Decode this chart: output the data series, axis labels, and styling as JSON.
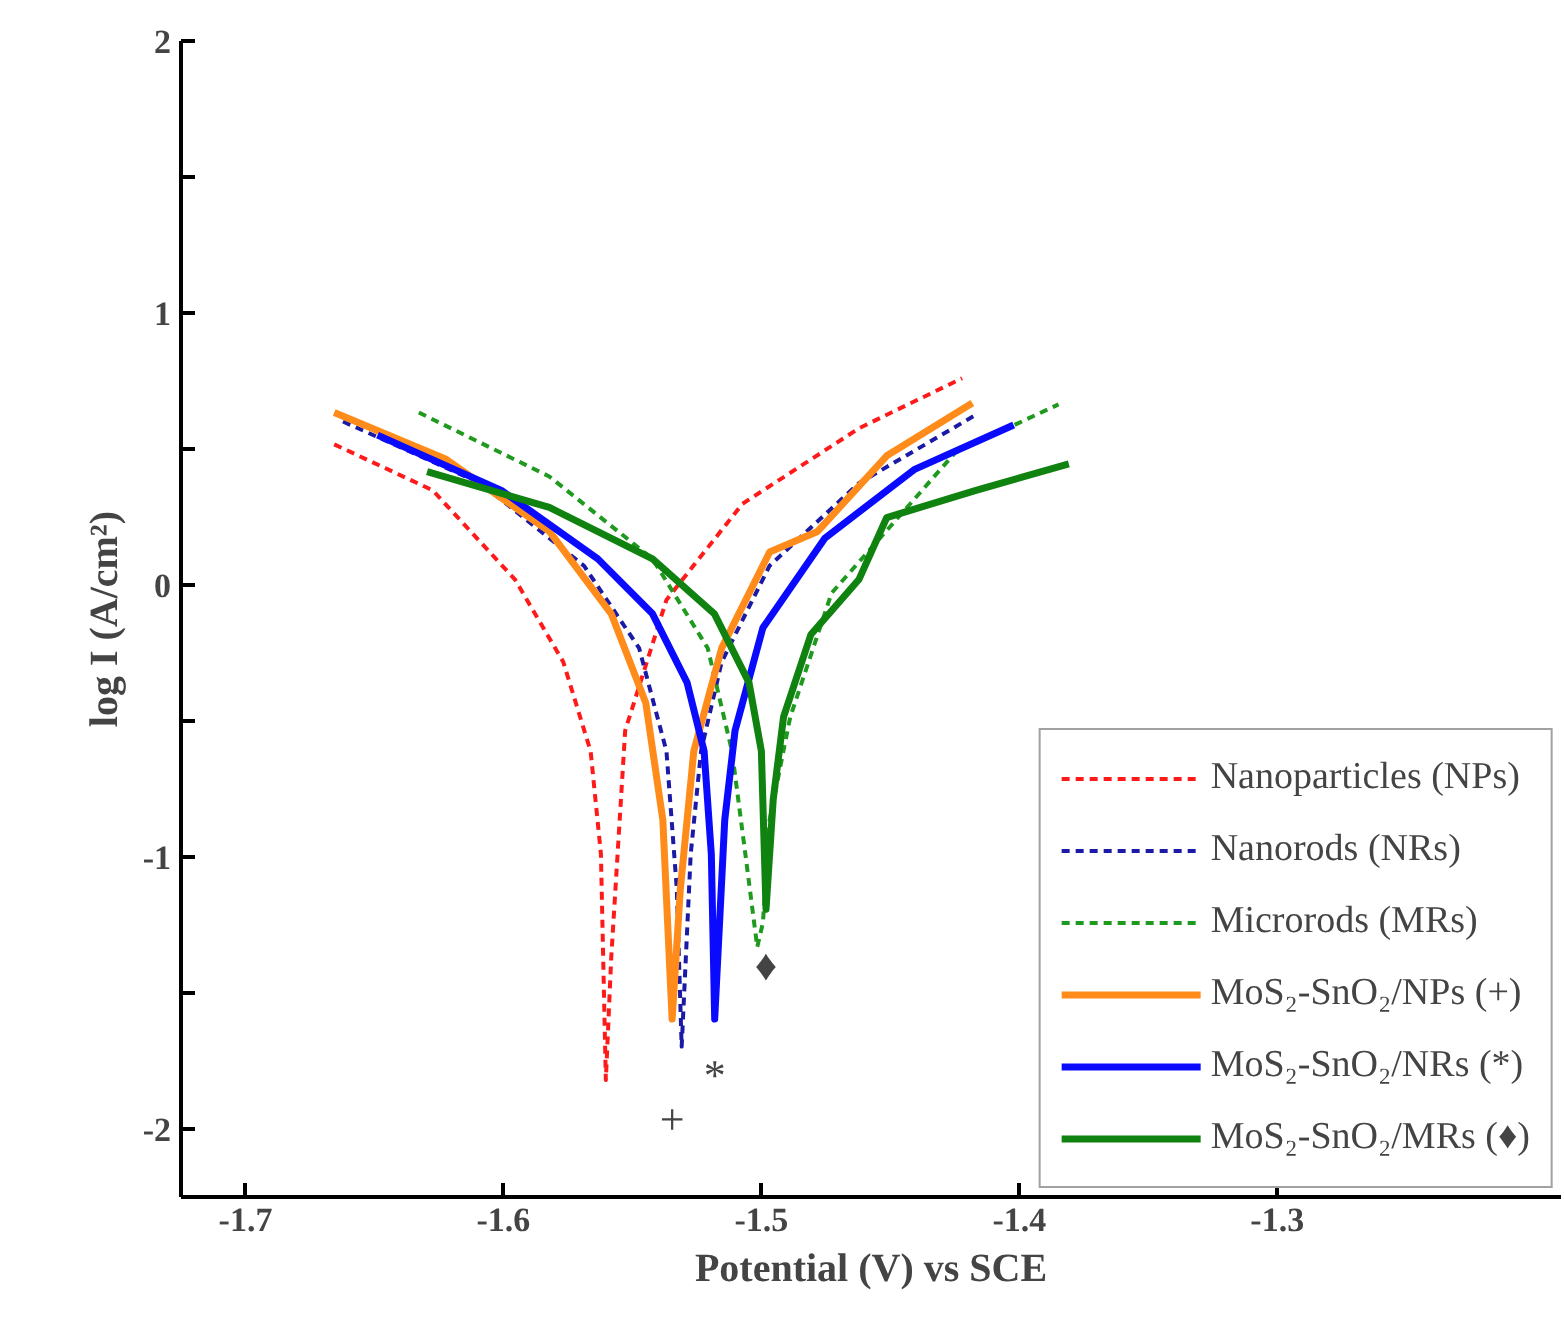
{
  "chart_data": {
    "type": "line",
    "xlabel": "Potential (V) vs SCE",
    "ylabel": "log I (A/cm²)",
    "xlim": [
      -1.725,
      -1.19
    ],
    "ylim": [
      -2.25,
      2
    ],
    "xticks": [
      -1.7,
      -1.6,
      -1.5,
      -1.4,
      -1.3
    ],
    "yticks": [
      {
        "value": -2,
        "label": "-2"
      },
      {
        "value": -1.5,
        "label": null
      },
      {
        "value": -1,
        "label": "-1"
      },
      {
        "value": -0.5,
        "label": null
      },
      {
        "value": 0,
        "label": "0"
      },
      {
        "value": 0.5,
        "label": null
      },
      {
        "value": 1,
        "label": "1"
      },
      {
        "value": 1.5,
        "label": null
      },
      {
        "value": 2,
        "label": "2"
      }
    ],
    "grid": false,
    "legend": "bottom right",
    "marker": "none",
    "series": [
      {
        "name": "Nanoparticles (NPs)",
        "color": "#ff1a1a",
        "line_style": "dashed",
        "x": [
          -1.6656,
          -1.6274,
          -1.5955,
          -1.5768,
          -1.5662,
          -1.5622,
          -1.5603,
          -1.5582,
          -1.5528,
          -1.5368,
          -1.5074,
          -1.4622,
          -1.4222
        ],
        "values": [
          0.517,
          0.348,
          0.02,
          -0.283,
          -0.611,
          -0.99,
          -1.82,
          -1.369,
          -0.535,
          -0.055,
          0.298,
          0.576,
          0.76
        ]
      },
      {
        "name": "Nanorods (NRs)",
        "color": "#1a1aa6",
        "line_style": "dashed",
        "x": [
          -1.6622,
          -1.6088,
          -1.5688,
          -1.5474,
          -1.5368,
          -1.5328,
          -1.5309,
          -1.5274,
          -1.5234,
          -1.5154,
          -1.4968,
          -1.4622,
          -1.4168
        ],
        "values": [
          0.601,
          0.374,
          0.071,
          -0.232,
          -0.611,
          -1.116,
          -1.697,
          -0.99,
          -0.611,
          -0.283,
          0.071,
          0.374,
          0.626
        ]
      },
      {
        "name": "Microrods (MRs)",
        "color": "#1f9a1f",
        "line_style": "dashed",
        "x": [
          -1.6328,
          -1.5822,
          -1.5422,
          -1.5208,
          -1.5114,
          -1.5062,
          -1.5016,
          -1.4994,
          -1.4968,
          -1.4888,
          -1.4728,
          -1.4248,
          -1.3848
        ],
        "values": [
          0.634,
          0.399,
          0.096,
          -0.232,
          -0.611,
          -0.99,
          -1.331,
          -1.242,
          -0.864,
          -0.485,
          -0.03,
          0.487,
          0.664
        ]
      },
      {
        "name": "MoS₂-SnO₂/NPs (+)",
        "color": "#ff8c1a",
        "line_style": "solid",
        "x": [
          -1.6656,
          -1.6222,
          -1.5822,
          -1.5582,
          -1.5448,
          -1.5382,
          -1.5346,
          -1.5314,
          -1.5262,
          -1.5154,
          -1.4968,
          -1.4782,
          -1.4514,
          -1.4182
        ],
        "values": [
          0.634,
          0.462,
          0.197,
          -0.106,
          -0.434,
          -0.864,
          -1.596,
          -1.116,
          -0.611,
          -0.232,
          0.121,
          0.197,
          0.475,
          0.669
        ]
      },
      {
        "name": "MoS₂-SnO₂/NRs (*)",
        "color": "#0a0aff",
        "line_style": "solid",
        "x": [
          -1.6488,
          -1.6008,
          -1.5634,
          -1.5422,
          -1.5288,
          -1.5222,
          -1.5194,
          -1.5181,
          -1.5142,
          -1.5102,
          -1.4994,
          -1.4754,
          -1.4408,
          -1.4022
        ],
        "values": [
          0.551,
          0.348,
          0.096,
          -0.106,
          -0.359,
          -0.611,
          -0.99,
          -1.596,
          -0.864,
          -0.535,
          -0.157,
          0.172,
          0.424,
          0.588
        ]
      },
      {
        "name": "MoS₂-SnO₂/MRs (♦)",
        "color": "#0f820f",
        "line_style": "solid",
        "x": [
          -1.6296,
          -1.5822,
          -1.5422,
          -1.5182,
          -1.5048,
          -1.5,
          -1.4982,
          -1.4954,
          -1.4914,
          -1.4808,
          -1.4622,
          -1.4514,
          -1.4168,
          -1.3808
        ],
        "values": [
          0.417,
          0.285,
          0.096,
          -0.106,
          -0.359,
          -0.611,
          -1.192,
          -0.788,
          -0.485,
          -0.182,
          0.02,
          0.248,
          0.348,
          0.445
        ]
      }
    ],
    "annotations": [
      "+",
      "*",
      "♦"
    ]
  }
}
